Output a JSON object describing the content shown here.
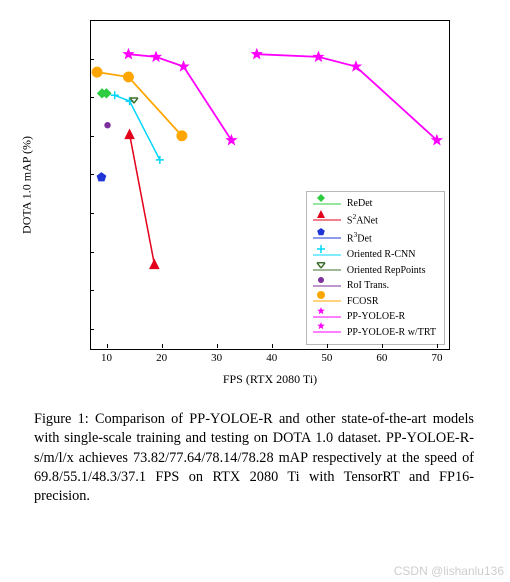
{
  "chart": {
    "type": "line_scatter",
    "xlabel": "FPS (RTX 2080 Ti)",
    "ylabel": "DOTA 1.0 mAP (%)",
    "xlim": [
      7,
      72
    ],
    "ylim": [
      63,
      80
    ],
    "xticks": [
      10,
      20,
      30,
      40,
      50,
      60,
      70
    ],
    "yticks": [
      64,
      66,
      68,
      70,
      72,
      74,
      76,
      78,
      80
    ],
    "background_color": "#ffffff",
    "border_color": "#000000",
    "tick_fontsize": 11,
    "label_fontsize": 12,
    "series": [
      {
        "name": "ReDet",
        "color": "#2ecc40",
        "marker": "diamond",
        "line": true,
        "size": 9,
        "lw": 1.5,
        "points": [
          {
            "x": 9.0,
            "y": 76.25
          },
          {
            "x": 9.8,
            "y": 76.25
          }
        ]
      },
      {
        "name": "S2ANet",
        "label_html": "S<sup>2</sup>ANet",
        "color": "#e3001b",
        "marker": "triangle",
        "line": true,
        "size": 9,
        "lw": 1.5,
        "points": [
          {
            "x": 14.0,
            "y": 74.14
          },
          {
            "x": 18.5,
            "y": 67.4
          }
        ]
      },
      {
        "name": "R3Det",
        "label_html": "R<sup>3</sup>Det",
        "color": "#1f35d6",
        "marker": "pentagon",
        "line": true,
        "size": 9,
        "lw": 1.5,
        "points": [
          {
            "x": 8.9,
            "y": 71.9
          }
        ]
      },
      {
        "name": "Oriented R-CNN",
        "color": "#00d5ff",
        "marker": "plus",
        "line": true,
        "size": 8,
        "lw": 1.5,
        "points": [
          {
            "x": 11.3,
            "y": 76.15
          },
          {
            "x": 14.0,
            "y": 75.85
          },
          {
            "x": 19.5,
            "y": 72.8
          }
        ]
      },
      {
        "name": "Oriented RepPoints",
        "color": "#3f7030",
        "marker": "tri_down",
        "line": true,
        "size": 8,
        "lw": 1.5,
        "points": [
          {
            "x": 14.8,
            "y": 75.95
          }
        ]
      },
      {
        "name": "RoI Trans.",
        "color": "#7e2f9e",
        "marker": "dot",
        "line": true,
        "size": 6,
        "lw": 1.5,
        "points": [
          {
            "x": 10.0,
            "y": 74.6
          }
        ]
      },
      {
        "name": "FCOSR",
        "color": "#ffa500",
        "marker": "circle",
        "line": true,
        "size": 9,
        "lw": 1.8,
        "points": [
          {
            "x": 8.1,
            "y": 77.35
          },
          {
            "x": 13.8,
            "y": 77.1
          },
          {
            "x": 23.5,
            "y": 74.05
          }
        ]
      },
      {
        "name": "PP-YOLOE-R",
        "color": "#ff00ff",
        "marker": "star",
        "line": true,
        "size": 10,
        "lw": 1.8,
        "points": [
          {
            "x": 13.8,
            "y": 78.28
          },
          {
            "x": 18.8,
            "y": 78.14
          },
          {
            "x": 23.8,
            "y": 77.64
          },
          {
            "x": 32.5,
            "y": 73.82
          }
        ]
      },
      {
        "name": "PP-YOLOE-R w/TRT",
        "color": "#ff00ff",
        "marker": "star",
        "line": true,
        "size": 10,
        "lw": 1.8,
        "points": [
          {
            "x": 37.1,
            "y": 78.28
          },
          {
            "x": 48.3,
            "y": 78.14
          },
          {
            "x": 55.1,
            "y": 77.64
          },
          {
            "x": 69.8,
            "y": 73.82
          }
        ]
      }
    ],
    "legend": {
      "position": "lower-right",
      "fontsize": 10,
      "border_color": "#b8b8b8",
      "items": [
        "ReDet",
        "S2ANet",
        "R3Det",
        "Oriented R-CNN",
        "Oriented RepPoints",
        "RoI Trans.",
        "FCOSR",
        "PP-YOLOE-R",
        "PP-YOLOE-R w/TRT"
      ]
    }
  },
  "caption": {
    "text": "Figure 1: Comparison of PP-YOLOE-R and other state-of-the-art models with single-scale training and testing on DOTA 1.0 dataset.  PP-YOLOE-R-s/m/l/x achieves 73.82/77.64/78.14/78.28 mAP respectively at the speed of 69.8/55.1/48.3/37.1 FPS on RTX 2080 Ti with TensorRT and FP16-precision.",
    "fontsize": 14.3
  },
  "watermark": "CSDN @lishanlu136"
}
